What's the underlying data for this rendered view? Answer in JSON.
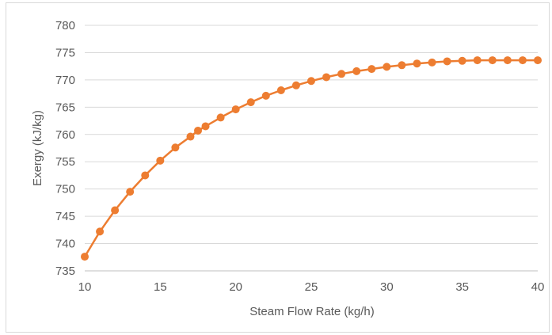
{
  "chart_data": {
    "type": "line",
    "title": "",
    "xlabel": "Steam Flow Rate (kg/h)",
    "ylabel": "Exergy (kJ/kg)",
    "xlim": [
      10,
      40
    ],
    "ylim": [
      735,
      780
    ],
    "xticks": [
      10,
      15,
      20,
      25,
      30,
      35,
      40
    ],
    "yticks": [
      735,
      740,
      745,
      750,
      755,
      760,
      765,
      770,
      775,
      780
    ],
    "xtick_labels": [
      "10",
      "15",
      "20",
      "25",
      "30",
      "35",
      "40"
    ],
    "ytick_labels": [
      "735",
      "740",
      "745",
      "750",
      "755",
      "760",
      "765",
      "770",
      "775",
      "780"
    ],
    "grid": "horizontal",
    "legend": "none",
    "series": [
      {
        "color": "#ED7D31",
        "marker": "circle",
        "x": [
          10,
          11,
          12,
          13,
          14,
          15,
          16,
          17,
          17.5,
          18,
          19,
          20,
          21,
          22,
          23,
          24,
          25,
          26,
          27,
          28,
          29,
          30,
          31,
          32,
          33,
          34,
          35,
          36,
          37,
          38,
          39,
          40
        ],
        "y": [
          737.6,
          742.2,
          746.1,
          749.5,
          752.5,
          755.2,
          757.6,
          759.6,
          760.7,
          761.5,
          763.1,
          764.6,
          765.9,
          767.1,
          768.1,
          769.0,
          769.8,
          770.5,
          771.1,
          771.6,
          772.0,
          772.4,
          772.7,
          773.0,
          773.2,
          773.4,
          773.5,
          773.6,
          773.6,
          773.6,
          773.6,
          773.6
        ]
      }
    ]
  }
}
